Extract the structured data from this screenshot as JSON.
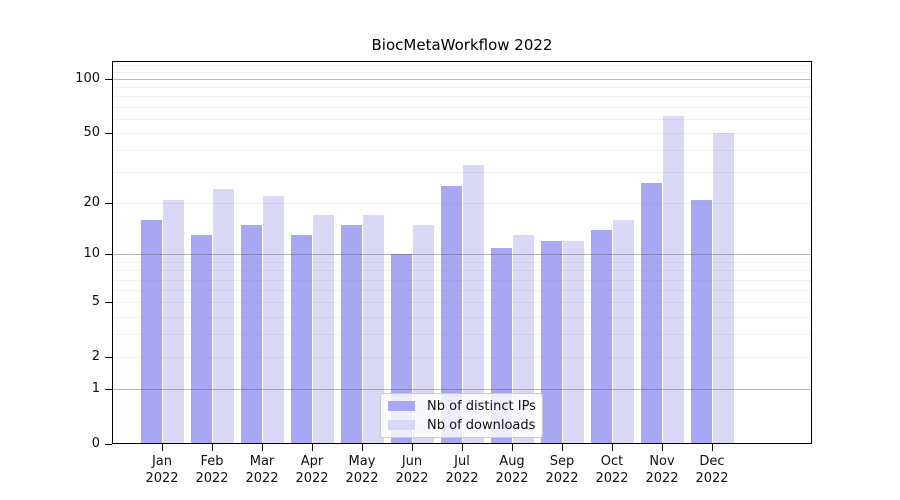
{
  "chart_data": {
    "type": "bar",
    "title": "BiocMetaWorkflow 2022",
    "year_label": "2022",
    "categories": [
      "Jan",
      "Feb",
      "Mar",
      "Apr",
      "May",
      "Jun",
      "Jul",
      "Aug",
      "Sep",
      "Oct",
      "Nov",
      "Dec"
    ],
    "series": [
      {
        "name": "Nb of distinct IPs",
        "color": "#a7a7f3",
        "values": [
          16,
          13,
          15,
          13,
          15,
          10,
          25,
          11,
          12,
          14,
          26,
          21
        ]
      },
      {
        "name": "Nb of downloads",
        "color": "#d9d9f7",
        "values": [
          21,
          24,
          22,
          17,
          17,
          15,
          33,
          13,
          12,
          16,
          62,
          50
        ]
      }
    ],
    "xlabel": "",
    "ylabel": "",
    "yscale": "log10(1+value)",
    "ylim": [
      0,
      126
    ],
    "ytick_labels": [
      100,
      50,
      20,
      10,
      5,
      2,
      1,
      0
    ],
    "minor_gridlines": [
      1,
      2,
      3,
      4,
      5,
      6,
      7,
      8,
      9,
      10,
      20,
      30,
      40,
      50,
      60,
      70,
      80,
      90,
      100,
      110,
      120
    ],
    "major_gridlines": [
      1,
      10,
      100
    ],
    "grid": true,
    "legend_position": "bottom-center"
  },
  "layout_colors": {
    "bar_ips": "#a7a7f3",
    "bar_downloads": "#d9d9f7",
    "axis": "#000000",
    "legend_border": "#cccccc"
  }
}
